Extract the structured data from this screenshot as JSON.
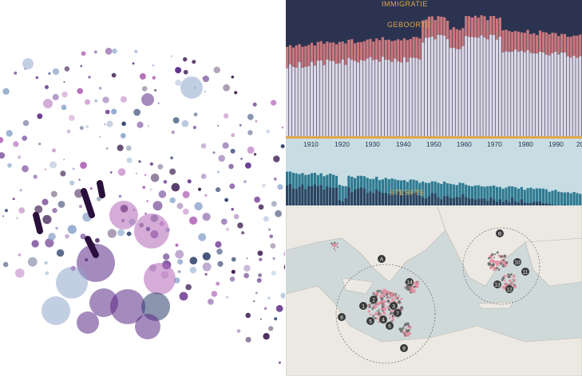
{
  "panels": {
    "bubbles": {
      "colors": {
        "purple": "#5b2a86",
        "pink": "#b267b8",
        "navy": "#2c3e6b",
        "lightblue": "#8fa8cc"
      }
    },
    "population": {
      "labels": {
        "immigration": "IMMIGRATIE",
        "birth": "GEBOORTE",
        "death": "STERFTE"
      },
      "years": [
        "1910",
        "1920",
        "1930",
        "1940",
        "1950",
        "1960",
        "1970",
        "1980",
        "1990",
        "20"
      ],
      "colors": {
        "dark": "#2b3350",
        "birth": "#c9787d",
        "base": "#ddd8e6",
        "death": "#2e7a91",
        "deathBg": "#c7dde3",
        "axis": "#e0a84a"
      }
    },
    "map": {
      "labels": [
        "A",
        "B",
        "1",
        "2",
        "3",
        "4",
        "5",
        "6",
        "7",
        "8",
        "9",
        "10",
        "11",
        "12",
        "13",
        "14"
      ],
      "colors": {
        "sea": "#cfd9da",
        "land": "#ece9e2",
        "pink": "#e08a9a",
        "grey": "#666666"
      }
    }
  }
}
